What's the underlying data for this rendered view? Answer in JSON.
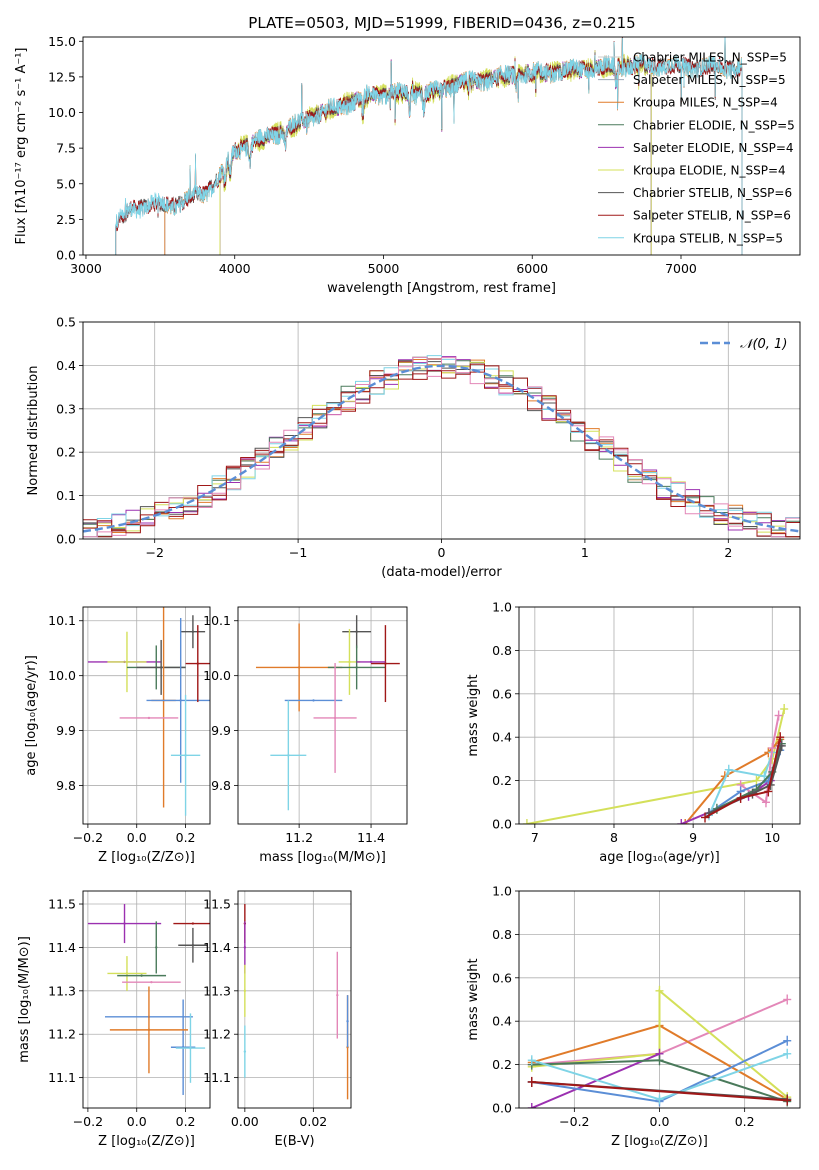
{
  "figure": {
    "title": "PLATE=0503, MJD=51999, FIBERID=0436, z=0.215"
  },
  "chart_data": [
    {
      "id": "spectrum",
      "type": "line",
      "xlabel": "wavelength [Angstrom, rest frame]",
      "ylabel": "Flux [fλ10⁻¹⁷ erg cm⁻² s⁻¹ A⁻¹]",
      "xlim": [
        2980,
        7800
      ],
      "ylim": [
        0,
        15.3
      ],
      "xticks": [
        3000,
        4000,
        5000,
        6000,
        7000
      ],
      "yticks": [
        0.0,
        2.5,
        5.0,
        7.5,
        10.0,
        12.5,
        15.0
      ],
      "grid": false,
      "legend_position": "top-right",
      "continuum_x": [
        3200,
        3300,
        3450,
        3600,
        3700,
        3800,
        3900,
        4000,
        4100,
        4300,
        4500,
        4700,
        4900,
        5100,
        5300,
        5500,
        5700,
        5900,
        6100,
        6300,
        6500,
        6700,
        6900,
        7100,
        7300,
        7450
      ],
      "continuum_y": [
        2.2,
        3.2,
        3.6,
        3.5,
        4.0,
        4.3,
        5.6,
        7.3,
        7.8,
        8.6,
        9.6,
        10.4,
        11.2,
        11.4,
        11.3,
        12.0,
        12.3,
        12.7,
        12.8,
        13.0,
        13.2,
        13.3,
        13.3,
        13.2,
        13.2,
        13.1
      ],
      "series": [
        {
          "name": "Chabrier MILES, N_SSP=5",
          "color": "#cccccc",
          "x_min": 3530,
          "x_max": 7410
        },
        {
          "name": "Salpeter MILES, N_SSP=5",
          "color": "#9da9b8",
          "x_min": 3530,
          "x_max": 7410
        },
        {
          "name": "Kroupa MILES, N_SSP=4",
          "color": "#e07b2a",
          "x_min": 3530,
          "x_max": 7410
        },
        {
          "name": "Chabrier ELODIE, N_SSP=5",
          "color": "#4a7a5b",
          "x_min": 3900,
          "x_max": 6800
        },
        {
          "name": "Salpeter ELODIE, N_SSP=4",
          "color": "#9b30b0",
          "x_min": 3900,
          "x_max": 6800
        },
        {
          "name": "Kroupa ELODIE, N_SSP=4",
          "color": "#d4e05a",
          "x_min": 3900,
          "x_max": 6800
        },
        {
          "name": "Chabrier STELIB, N_SSP=6",
          "color": "#555555",
          "x_min": 3200,
          "x_max": 7410
        },
        {
          "name": "Salpeter STELIB, N_SSP=6",
          "color": "#a01818",
          "x_min": 3200,
          "x_max": 7410
        },
        {
          "name": "Kroupa STELIB, N_SSP=5",
          "color": "#7fd4e6",
          "x_min": 3200,
          "x_max": 7410
        }
      ]
    },
    {
      "id": "residuals",
      "type": "line",
      "xlabel": "(data-model)/error",
      "ylabel": "Normed distribution",
      "xlim": [
        -2.5,
        2.5
      ],
      "ylim": [
        0,
        0.5
      ],
      "xticks": [
        -2,
        -1,
        0,
        1,
        2
      ],
      "yticks": [
        0.0,
        0.1,
        0.2,
        0.3,
        0.4,
        0.5
      ],
      "grid": true,
      "legend_position": "top-right",
      "reference_label": "𝒩(0, 1)",
      "reference_color": "#5b8ed6",
      "bin_width": 0.1,
      "series_colors": [
        "#e07b2a",
        "#9b30b0",
        "#4a7a5b",
        "#d4e05a",
        "#555555",
        "#a01818",
        "#7fd4e6",
        "#e387b8",
        "#a01818"
      ]
    },
    {
      "id": "age-vs-Z",
      "type": "scatter",
      "xlabel": "Z [log₁₀(Z/Z⊙)]",
      "ylabel": "age  [log₁₀(age/yr)]",
      "xlim": [
        -0.22,
        0.3
      ],
      "ylim": [
        9.73,
        10.125
      ],
      "xticks": [
        -0.2,
        0.0,
        0.2
      ],
      "yticks": [
        9.8,
        9.9,
        10.0,
        10.1
      ],
      "grid": true,
      "points": [
        {
          "x": -0.05,
          "y": 10.025,
          "xerr": 0.15,
          "yerr": 0.0,
          "color": "#9b30b0"
        },
        {
          "x": -0.04,
          "y": 10.025,
          "xerr": 0.08,
          "yerr": 0.055,
          "color": "#d4e05a"
        },
        {
          "x": 0.08,
          "y": 10.015,
          "xerr": 0.12,
          "yerr": 0.04,
          "color": "#4a7a5b"
        },
        {
          "x": 0.1,
          "y": 10.015,
          "xerr": 0.1,
          "yerr": 0.05,
          "color": "#555555"
        },
        {
          "x": 0.23,
          "y": 10.08,
          "xerr": 0.05,
          "yerr": 0.03,
          "color": "#555555"
        },
        {
          "x": 0.11,
          "y": 9.955,
          "xerr": 0.05,
          "yerr": 0.195,
          "color": "#e07b2a"
        },
        {
          "x": 0.18,
          "y": 9.955,
          "xerr": 0.14,
          "yerr": 0.15,
          "color": "#5b8ed6"
        },
        {
          "x": 0.05,
          "y": 9.923,
          "xerr": 0.12,
          "yerr": 0.0,
          "color": "#e387b8"
        },
        {
          "x": 0.2,
          "y": 9.855,
          "xerr": 0.06,
          "yerr": 0.11,
          "color": "#7fd4e6"
        },
        {
          "x": 0.25,
          "y": 10.022,
          "xerr": 0.05,
          "yerr": 0.07,
          "color": "#a01818"
        }
      ]
    },
    {
      "id": "age-vs-mass",
      "type": "scatter",
      "xlabel": "mass [log₁₀(M/M⊙)]",
      "ylabel": "",
      "xlim": [
        11.03,
        11.5
      ],
      "ylim": [
        9.73,
        10.125
      ],
      "xticks": [
        11.2,
        11.4
      ],
      "yticks": [
        9.8,
        9.9,
        10.0,
        10.1
      ],
      "grid": true,
      "points": [
        {
          "x": 11.2,
          "y": 10.015,
          "xerr": 0.12,
          "yerr": 0.08,
          "color": "#e07b2a"
        },
        {
          "x": 11.36,
          "y": 10.08,
          "xerr": 0.04,
          "yerr": 0.03,
          "color": "#555555"
        },
        {
          "x": 11.34,
          "y": 10.025,
          "xerr": 0.03,
          "yerr": 0.06,
          "color": "#d4e05a"
        },
        {
          "x": 11.36,
          "y": 10.015,
          "xerr": 0.08,
          "yerr": 0.04,
          "color": "#4a7a5b"
        },
        {
          "x": 11.44,
          "y": 10.022,
          "xerr": 0.04,
          "yerr": 0.07,
          "color": "#a01818"
        },
        {
          "x": 11.4,
          "y": 10.025,
          "xerr": 0.04,
          "yerr": 0.0,
          "color": "#9b30b0"
        },
        {
          "x": 11.24,
          "y": 9.955,
          "xerr": 0.08,
          "yerr": 0.0,
          "color": "#5b8ed6"
        },
        {
          "x": 11.3,
          "y": 9.923,
          "xerr": 0.06,
          "yerr": 0.1,
          "color": "#e387b8"
        },
        {
          "x": 11.17,
          "y": 9.855,
          "xerr": 0.05,
          "yerr": 0.1,
          "color": "#7fd4e6"
        }
      ]
    },
    {
      "id": "weight-vs-age",
      "type": "line",
      "xlabel": "age  [log₁₀(age/yr)]",
      "ylabel": "mass weight",
      "xlim": [
        6.8,
        10.35
      ],
      "ylim": [
        0,
        1.0
      ],
      "xticks": [
        7,
        8,
        9,
        10
      ],
      "yticks": [
        0.0,
        0.2,
        0.4,
        0.6,
        0.8,
        1.0
      ],
      "grid": true,
      "series": [
        {
          "color": "#d4e05a",
          "x": [
            6.9,
            9.8,
            10.0,
            10.15
          ],
          "y": [
            0.0,
            0.2,
            0.3,
            0.53
          ]
        },
        {
          "color": "#e07b2a",
          "x": [
            8.9,
            9.4,
            9.95,
            10.1
          ],
          "y": [
            0.0,
            0.22,
            0.33,
            0.39
          ]
        },
        {
          "color": "#9b30b0",
          "x": [
            8.85,
            9.7,
            9.98,
            10.1
          ],
          "y": [
            0.0,
            0.13,
            0.2,
            0.36
          ]
        },
        {
          "color": "#7fd4e6",
          "x": [
            9.2,
            9.45,
            9.9,
            10.0
          ],
          "y": [
            0.04,
            0.25,
            0.22,
            0.33
          ]
        },
        {
          "color": "#e387b8",
          "x": [
            9.6,
            9.92,
            10.0,
            10.08
          ],
          "y": [
            0.18,
            0.1,
            0.35,
            0.5
          ]
        },
        {
          "color": "#5b8ed6",
          "x": [
            9.2,
            9.6,
            9.95,
            10.1
          ],
          "y": [
            0.05,
            0.15,
            0.2,
            0.34
          ]
        },
        {
          "color": "#4a7a5b",
          "x": [
            9.3,
            9.8,
            10.0,
            10.12
          ],
          "y": [
            0.07,
            0.16,
            0.24,
            0.37
          ]
        },
        {
          "color": "#555555",
          "x": [
            9.2,
            9.75,
            9.98,
            10.12
          ],
          "y": [
            0.05,
            0.14,
            0.18,
            0.36
          ]
        },
        {
          "color": "#a01818",
          "x": [
            9.15,
            9.6,
            9.95,
            10.1
          ],
          "y": [
            0.03,
            0.12,
            0.15,
            0.4
          ]
        }
      ]
    },
    {
      "id": "mass-vs-Z",
      "type": "scatter",
      "xlabel": "Z [log₁₀(Z/Z⊙)]",
      "ylabel": "mass [log₁₀(M/M⊙)]",
      "xlim": [
        -0.22,
        0.3
      ],
      "ylim": [
        11.03,
        11.53
      ],
      "xticks": [
        -0.2,
        0.0,
        0.2
      ],
      "yticks": [
        11.1,
        11.2,
        11.3,
        11.4,
        11.5
      ],
      "grid": true,
      "points": [
        {
          "x": -0.05,
          "y": 11.455,
          "xerr": 0.15,
          "yerr": 0.045,
          "color": "#9b30b0"
        },
        {
          "x": 0.23,
          "y": 11.455,
          "xerr": 0.08,
          "yerr": 0.0,
          "color": "#a01818"
        },
        {
          "x": 0.23,
          "y": 11.405,
          "xerr": 0.06,
          "yerr": 0.04,
          "color": "#555555"
        },
        {
          "x": 0.08,
          "y": 11.4,
          "xerr": 0.0,
          "yerr": 0.06,
          "color": "#4a7a5b"
        },
        {
          "x": -0.04,
          "y": 11.34,
          "xerr": 0.08,
          "yerr": 0.04,
          "color": "#d4e05a"
        },
        {
          "x": 0.02,
          "y": 11.335,
          "xerr": 0.1,
          "yerr": 0.0,
          "color": "#4a7a5b"
        },
        {
          "x": 0.06,
          "y": 11.32,
          "xerr": 0.12,
          "yerr": 0.0,
          "color": "#e387b8"
        },
        {
          "x": 0.05,
          "y": 11.24,
          "xerr": 0.18,
          "yerr": 0.0,
          "color": "#5b8ed6"
        },
        {
          "x": 0.19,
          "y": 11.17,
          "xerr": 0.05,
          "yerr": 0.11,
          "color": "#5b8ed6"
        },
        {
          "x": 0.05,
          "y": 11.21,
          "xerr": 0.16,
          "yerr": 0.1,
          "color": "#e07b2a"
        },
        {
          "x": 0.22,
          "y": 11.168,
          "xerr": 0.06,
          "yerr": 0.08,
          "color": "#7fd4e6"
        }
      ]
    },
    {
      "id": "mass-vs-ebv",
      "type": "scatter",
      "xlabel": "E(B-V)",
      "ylabel": "",
      "xlim": [
        -0.002,
        0.031
      ],
      "ylim": [
        11.03,
        11.53
      ],
      "xticks": [
        0.0,
        0.02
      ],
      "yticks": [
        11.1,
        11.2,
        11.3,
        11.4,
        11.5
      ],
      "grid": true,
      "points": [
        {
          "x": 0.0,
          "y": 11.455,
          "xerr": 0.0,
          "yerr": 0.045,
          "color": "#a01818"
        },
        {
          "x": 0.0,
          "y": 11.4,
          "xerr": 0.0,
          "yerr": 0.06,
          "color": "#9b30b0"
        },
        {
          "x": 0.0,
          "y": 11.3,
          "xerr": 0.0,
          "yerr": 0.06,
          "color": "#d4e05a"
        },
        {
          "x": 0.0,
          "y": 11.16,
          "xerr": 0.0,
          "yerr": 0.06,
          "color": "#7fd4e6"
        },
        {
          "x": 0.027,
          "y": 11.29,
          "xerr": 0.0,
          "yerr": 0.1,
          "color": "#e387b8"
        },
        {
          "x": 0.03,
          "y": 11.17,
          "xerr": 0.0,
          "yerr": 0.12,
          "color": "#e07b2a"
        },
        {
          "x": 0.03,
          "y": 11.23,
          "xerr": 0.0,
          "yerr": 0.06,
          "color": "#5b8ed6"
        }
      ]
    },
    {
      "id": "weight-vs-Z",
      "type": "line",
      "xlabel": "Z [log₁₀(Z/Z⊙)]",
      "ylabel": "mass weight",
      "xlim": [
        -0.33,
        0.33
      ],
      "ylim": [
        0,
        1.0
      ],
      "xticks": [
        -0.2,
        0.0,
        0.2
      ],
      "yticks": [
        0.0,
        0.2,
        0.4,
        0.6,
        0.8,
        1.0
      ],
      "grid": true,
      "series": [
        {
          "color": "#e387b8",
          "x": [
            -0.3,
            0.0,
            0.3
          ],
          "y": [
            0.2,
            0.25,
            0.5
          ]
        },
        {
          "color": "#e07b2a",
          "x": [
            -0.3,
            0.0,
            0.3
          ],
          "y": [
            0.21,
            0.38,
            0.04
          ]
        },
        {
          "color": "#d4e05a",
          "x": [
            -0.3,
            0.0,
            0.0,
            0.3
          ],
          "y": [
            0.19,
            0.25,
            0.54,
            0.05
          ]
        },
        {
          "color": "#9b30b0",
          "x": [
            -0.3,
            0.0
          ],
          "y": [
            0.0,
            0.25
          ]
        },
        {
          "color": "#4a7a5b",
          "x": [
            -0.3,
            0.0,
            0.3
          ],
          "y": [
            0.2,
            0.22,
            0.03
          ]
        },
        {
          "color": "#5b8ed6",
          "x": [
            -0.3,
            0.0,
            0.3
          ],
          "y": [
            0.12,
            0.03,
            0.31
          ]
        },
        {
          "color": "#7fd4e6",
          "x": [
            -0.3,
            0.0,
            0.3
          ],
          "y": [
            0.22,
            0.04,
            0.25
          ]
        },
        {
          "color": "#555555",
          "x": [
            -0.3,
            0.3
          ],
          "y": [
            0.12,
            0.04
          ]
        },
        {
          "color": "#a01818",
          "x": [
            -0.3,
            0.3
          ],
          "y": [
            0.12,
            0.035
          ]
        }
      ]
    }
  ]
}
